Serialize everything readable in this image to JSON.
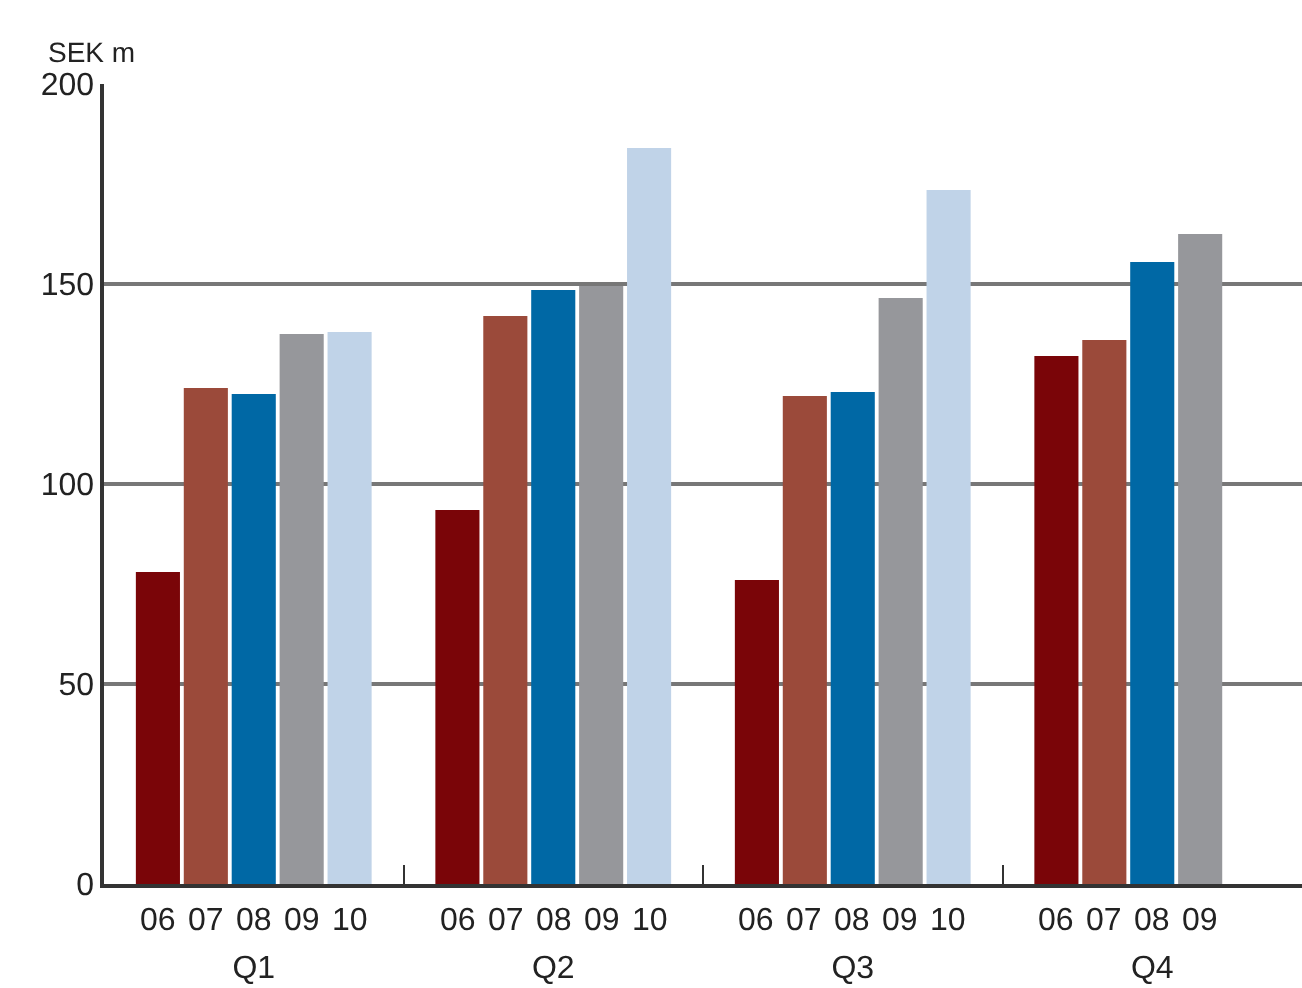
{
  "chart_data": {
    "type": "bar",
    "ylabel": "SEK m",
    "categories": [
      "Q1",
      "Q2",
      "Q3",
      "Q4"
    ],
    "series": [
      {
        "name": "06",
        "color": "#7a0508",
        "values": [
          78,
          93.5,
          76,
          132
        ]
      },
      {
        "name": "07",
        "color": "#9b4a3a",
        "values": [
          124,
          142,
          122,
          136
        ]
      },
      {
        "name": "08",
        "color": "#0068a5",
        "values": [
          122.5,
          148.5,
          123,
          155.5
        ]
      },
      {
        "name": "09",
        "color": "#96979b",
        "values": [
          137.5,
          149.5,
          146.5,
          162.5
        ]
      },
      {
        "name": "10",
        "color": "#c0d3e8",
        "values": [
          138,
          184,
          173.5,
          null
        ]
      }
    ],
    "ylim": [
      0,
      200
    ],
    "yticks": [
      0,
      50,
      100,
      150,
      200
    ],
    "grid": "y",
    "legend": false
  }
}
